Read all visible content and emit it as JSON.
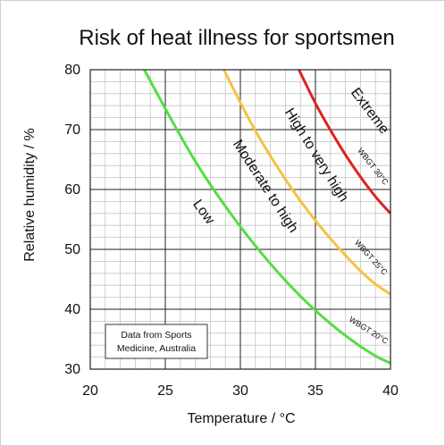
{
  "chart_data": {
    "type": "line",
    "title": "Risk of heat illness for sportsmen",
    "xlabel": "Temperature / °C",
    "ylabel": "Relative humidity / %",
    "xlim": [
      20,
      40
    ],
    "ylim": [
      30,
      80
    ],
    "xticks": [
      "20",
      "25",
      "30",
      "35",
      "40"
    ],
    "yticks": [
      "30",
      "40",
      "50",
      "60",
      "70",
      "80"
    ],
    "grid": true,
    "minor_grid": true,
    "series": [
      {
        "name": "WBGT 20°C",
        "color": "#55dd44",
        "x": [
          23.6,
          25.0,
          26.0,
          27.0,
          28.0,
          29.0,
          30.0,
          31.0,
          32.0,
          33.0,
          34.0,
          35.0,
          36.0,
          37.0,
          38.0,
          39.0,
          40.0
        ],
        "y": [
          80,
          73.5,
          69.0,
          64.7,
          60.8,
          57.2,
          53.8,
          50.6,
          47.6,
          44.8,
          42.2,
          39.8,
          37.6,
          35.6,
          33.8,
          32.2,
          31.0
        ]
      },
      {
        "name": "WBGT 25°C",
        "color": "#f5c242",
        "x": [
          28.9,
          30.0,
          31.0,
          32.0,
          33.0,
          34.0,
          35.0,
          36.0,
          37.0,
          38.0,
          39.0,
          40.0
        ],
        "y": [
          80,
          74.5,
          69.8,
          65.6,
          61.7,
          58.1,
          54.8,
          51.8,
          49.0,
          46.4,
          44.2,
          42.5
        ]
      },
      {
        "name": "WBGT 30°C",
        "color": "#dd2222",
        "x": [
          33.9,
          35.0,
          36.0,
          37.0,
          38.0,
          39.0,
          40.0
        ],
        "y": [
          80,
          74.4,
          69.9,
          65.8,
          62.1,
          58.8,
          56.0
        ]
      }
    ],
    "region_labels": [
      "Low",
      "Moderate to high",
      "High to very high",
      "Extreme"
    ],
    "curve_labels": [
      "WBGT 20°C",
      "WBGT 25°C",
      "WBGT 30°C"
    ],
    "annotation": [
      "Data from Sports",
      "Medicine, Australia"
    ]
  }
}
